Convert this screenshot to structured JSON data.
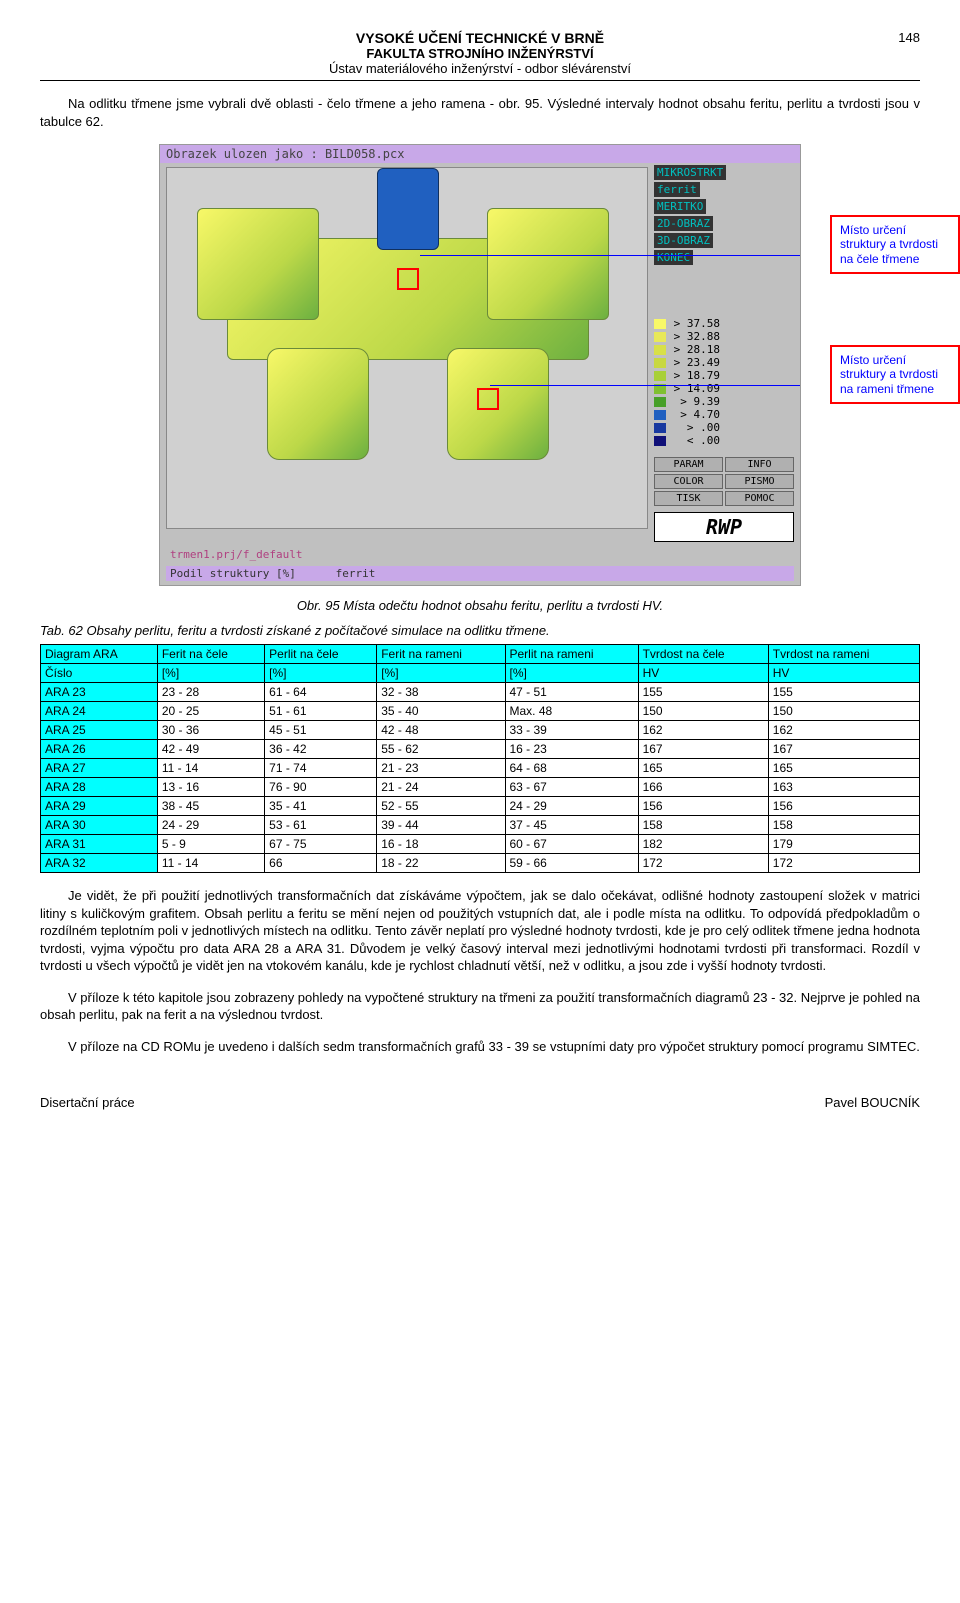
{
  "header": {
    "line1": "VYSOKÉ UČENÍ TECHNICKÉ V BRNĚ",
    "line2": "FAKULTA STROJNÍHO INŽENÝRSTVÍ",
    "line3": "Ústav materiálového inženýrství - odbor slévárenství",
    "page_number": "148"
  },
  "intro_paragraph": "Na odlitku třmene jsme vybrali dvě oblasti - čelo třmene a jeho ramena - obr. 95. Výsledné intervaly hodnot obsahu feritu, perlitu a tvrdosti jsou v tabulce 62.",
  "sim": {
    "titlebar": "Obrazek ulozen jako  :  BILD058.pcx",
    "side_labels": [
      "MIKROSTRKT",
      "ferrit",
      "MERITKO",
      "2D-OBRAZ",
      "3D-OBRAZ",
      "KONEC"
    ],
    "legend": [
      {
        "color": "#f8f868",
        "val": "> 37.58"
      },
      {
        "color": "#e8e858",
        "val": "> 32.88"
      },
      {
        "color": "#d8e048",
        "val": "> 28.18"
      },
      {
        "color": "#c8d840",
        "val": "> 23.49"
      },
      {
        "color": "#a8d038",
        "val": "> 18.79"
      },
      {
        "color": "#80c030",
        "val": "> 14.09"
      },
      {
        "color": "#48a028",
        "val": ">  9.39"
      },
      {
        "color": "#2060c0",
        "val": ">  4.70"
      },
      {
        "color": "#1838a0",
        "val": ">   .00"
      },
      {
        "color": "#101078",
        "val": "<   .00"
      }
    ],
    "buttons": [
      "PARAM",
      "INFO",
      "COLOR",
      "PISMO",
      "TISK",
      "POMOC"
    ],
    "rwp": "RWP",
    "footer_left": "trmen1.prj/f_default",
    "footer_bar_left": "Podil struktury [%]",
    "footer_bar_right": "ferrit"
  },
  "callout1": "Místo určení struktury a tvrdosti na čele třmene",
  "callout2": "Místo určení struktury a tvrdosti na rameni třmene",
  "fig_caption": "Obr. 95 Místa odečtu hodnot obsahu feritu, perlitu a tvrdosti HV.",
  "tab_caption": "Tab. 62 Obsahy perlitu, feritu a tvrdosti získané z počítačové simulace na odlitku třmene.",
  "table": {
    "header1": [
      "Diagram ARA",
      "Ferit na čele",
      "Perlit na čele",
      "Ferit na rameni",
      "Perlit na rameni",
      "Tvrdost na čele",
      "Tvrdost na rameni"
    ],
    "header2": [
      "Číslo",
      "[%]",
      "[%]",
      "[%]",
      "[%]",
      "HV",
      "HV"
    ],
    "rows": [
      [
        "ARA 23",
        "23 - 28",
        "61 - 64",
        "32 - 38",
        "47 - 51",
        "155",
        "155"
      ],
      [
        "ARA 24",
        "20 - 25",
        "51 - 61",
        "35 - 40",
        "Max. 48",
        "150",
        "150"
      ],
      [
        "ARA 25",
        "30 - 36",
        "45 - 51",
        "42 - 48",
        "33 - 39",
        "162",
        "162"
      ],
      [
        "ARA 26",
        "42 - 49",
        "36 - 42",
        "55 - 62",
        "16 - 23",
        "167",
        "167"
      ],
      [
        "ARA 27",
        "11 - 14",
        "71 - 74",
        "21 - 23",
        "64 - 68",
        "165",
        "165"
      ],
      [
        "ARA 28",
        "13 - 16",
        "76 - 90",
        "21 - 24",
        "63 - 67",
        "166",
        "163"
      ],
      [
        "ARA 29",
        "38 - 45",
        "35 - 41",
        "52 - 55",
        "24 - 29",
        "156",
        "156"
      ],
      [
        "ARA 30",
        "24 - 29",
        "53 - 61",
        "39 - 44",
        "37 - 45",
        "158",
        "158"
      ],
      [
        "ARA 31",
        "  5 - 9",
        "67 - 75",
        "16 - 18",
        "60 - 67",
        "182",
        "179"
      ],
      [
        "ARA 32",
        "11 - 14",
        "66",
        "18 - 22",
        "59 - 66",
        "172",
        "172"
      ]
    ]
  },
  "para1": "Je vidět, že při použití jednotlivých transformačních dat získáváme výpočtem, jak se dalo očekávat, odlišné hodnoty zastoupení složek v matrici litiny s kuličkovým grafitem. Obsah perlitu a feritu se mění nejen od použitých vstupních dat, ale i podle místa na odlitku. To odpovídá předpokladům o rozdílném teplotním poli v jednotlivých místech na odlitku. Tento závěr neplatí pro výsledné hodnoty tvrdosti, kde je pro celý odlitek třmene jedna hodnota tvrdosti, vyjma výpočtu pro data ARA 28 a ARA 31. Důvodem je velký časový interval mezi jednotlivými hodnotami tvrdosti při transformaci. Rozdíl v tvrdosti u všech výpočtů je vidět jen na vtokovém kanálu, kde je rychlost chladnutí větší, než v odlitku, a jsou zde i vyšší hodnoty tvrdosti.",
  "para2": "V příloze k této kapitole jsou zobrazeny pohledy na vypočtené struktury na třmeni za použití transformačních diagramů 23 - 32. Nejprve je pohled na obsah perlitu, pak na ferit a na výslednou tvrdost.",
  "para3": "V příloze na CD ROMu je uvedeno i dalších sedm transformačních grafů 33 - 39 se vstupními daty pro výpočet struktury pomocí programu SIMTEC.",
  "footer": {
    "left": "Disertační práce",
    "right": "Pavel BOUCNÍK"
  }
}
